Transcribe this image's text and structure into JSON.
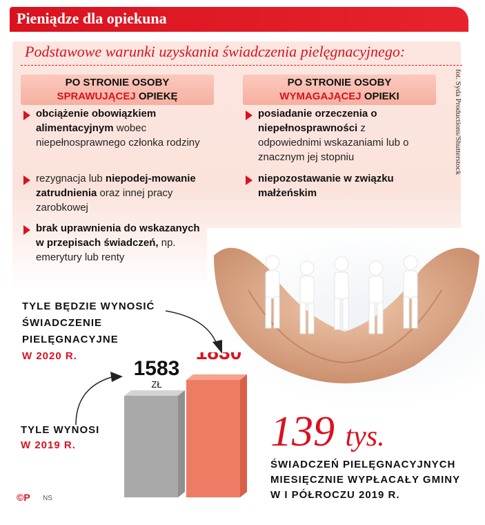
{
  "header": {
    "title": "Pieniądze dla opiekuna",
    "subtitle": "Podstawowe warunki uzyskania świadczenia pielęgnacyjnego:"
  },
  "left_column": {
    "heading_line1": "Po stronie osoby",
    "heading_highlight": "sprawującej",
    "heading_tail": "opiekę",
    "items": [
      {
        "bold": "obciążenie obowiązkiem alimentacyjnym",
        "rest": " wobec niepełnosprawnego członka rodziny"
      },
      {
        "pre": "rezygnacja lub ",
        "bold": "niepodej-mowanie zatrudnienia",
        "rest": " oraz innej pracy zarobkowej"
      },
      {
        "bold": "brak uprawnienia do wskazanych w przepisach świadczeń,",
        "rest": " np. emerytury lub renty"
      }
    ]
  },
  "right_column": {
    "heading_line1": "Po stronie osoby",
    "heading_highlight": "wymagającej",
    "heading_tail": "opieki",
    "items": [
      {
        "bold": "posiadanie orzeczenia o niepełnosprawności",
        "rest": " z odpowiednimi wskazaniami lub o znacznym jej stopniu"
      },
      {
        "bold": "niepozostawanie w związku małżeńskim",
        "rest": ""
      }
    ]
  },
  "photo_credit": "fot. Syda Productions/Shutterstock",
  "labels": {
    "label_2020_text": "TYLE BĘDZIE WYNOSIĆ ŚWIADCZENIE PIELĘGNACYJNE",
    "label_2020_year": "W 2020 R.",
    "label_2019_text": "TYLE WYNOSI",
    "label_2019_year": "W 2019 R."
  },
  "stat": {
    "number": "139",
    "unit": "tys.",
    "description": "ŚWIADCZEŃ PIELĘGNACYJNYCH MIESIĘCZNIE WYPŁACAŁY GMINY W I PÓŁROCZU 2019 R."
  },
  "footer": {
    "logo": "©P",
    "source": "NS"
  },
  "colors": {
    "accent": "#d9121f",
    "bar_2019": "#a9a9a9",
    "bar_2020": "#ee7b63"
  },
  "chart_data": {
    "type": "bar",
    "categories": [
      "2019",
      "2020"
    ],
    "values": [
      1583,
      1830
    ],
    "value_labels": [
      "1583",
      "1830"
    ],
    "unit": "ZŁ"
  }
}
